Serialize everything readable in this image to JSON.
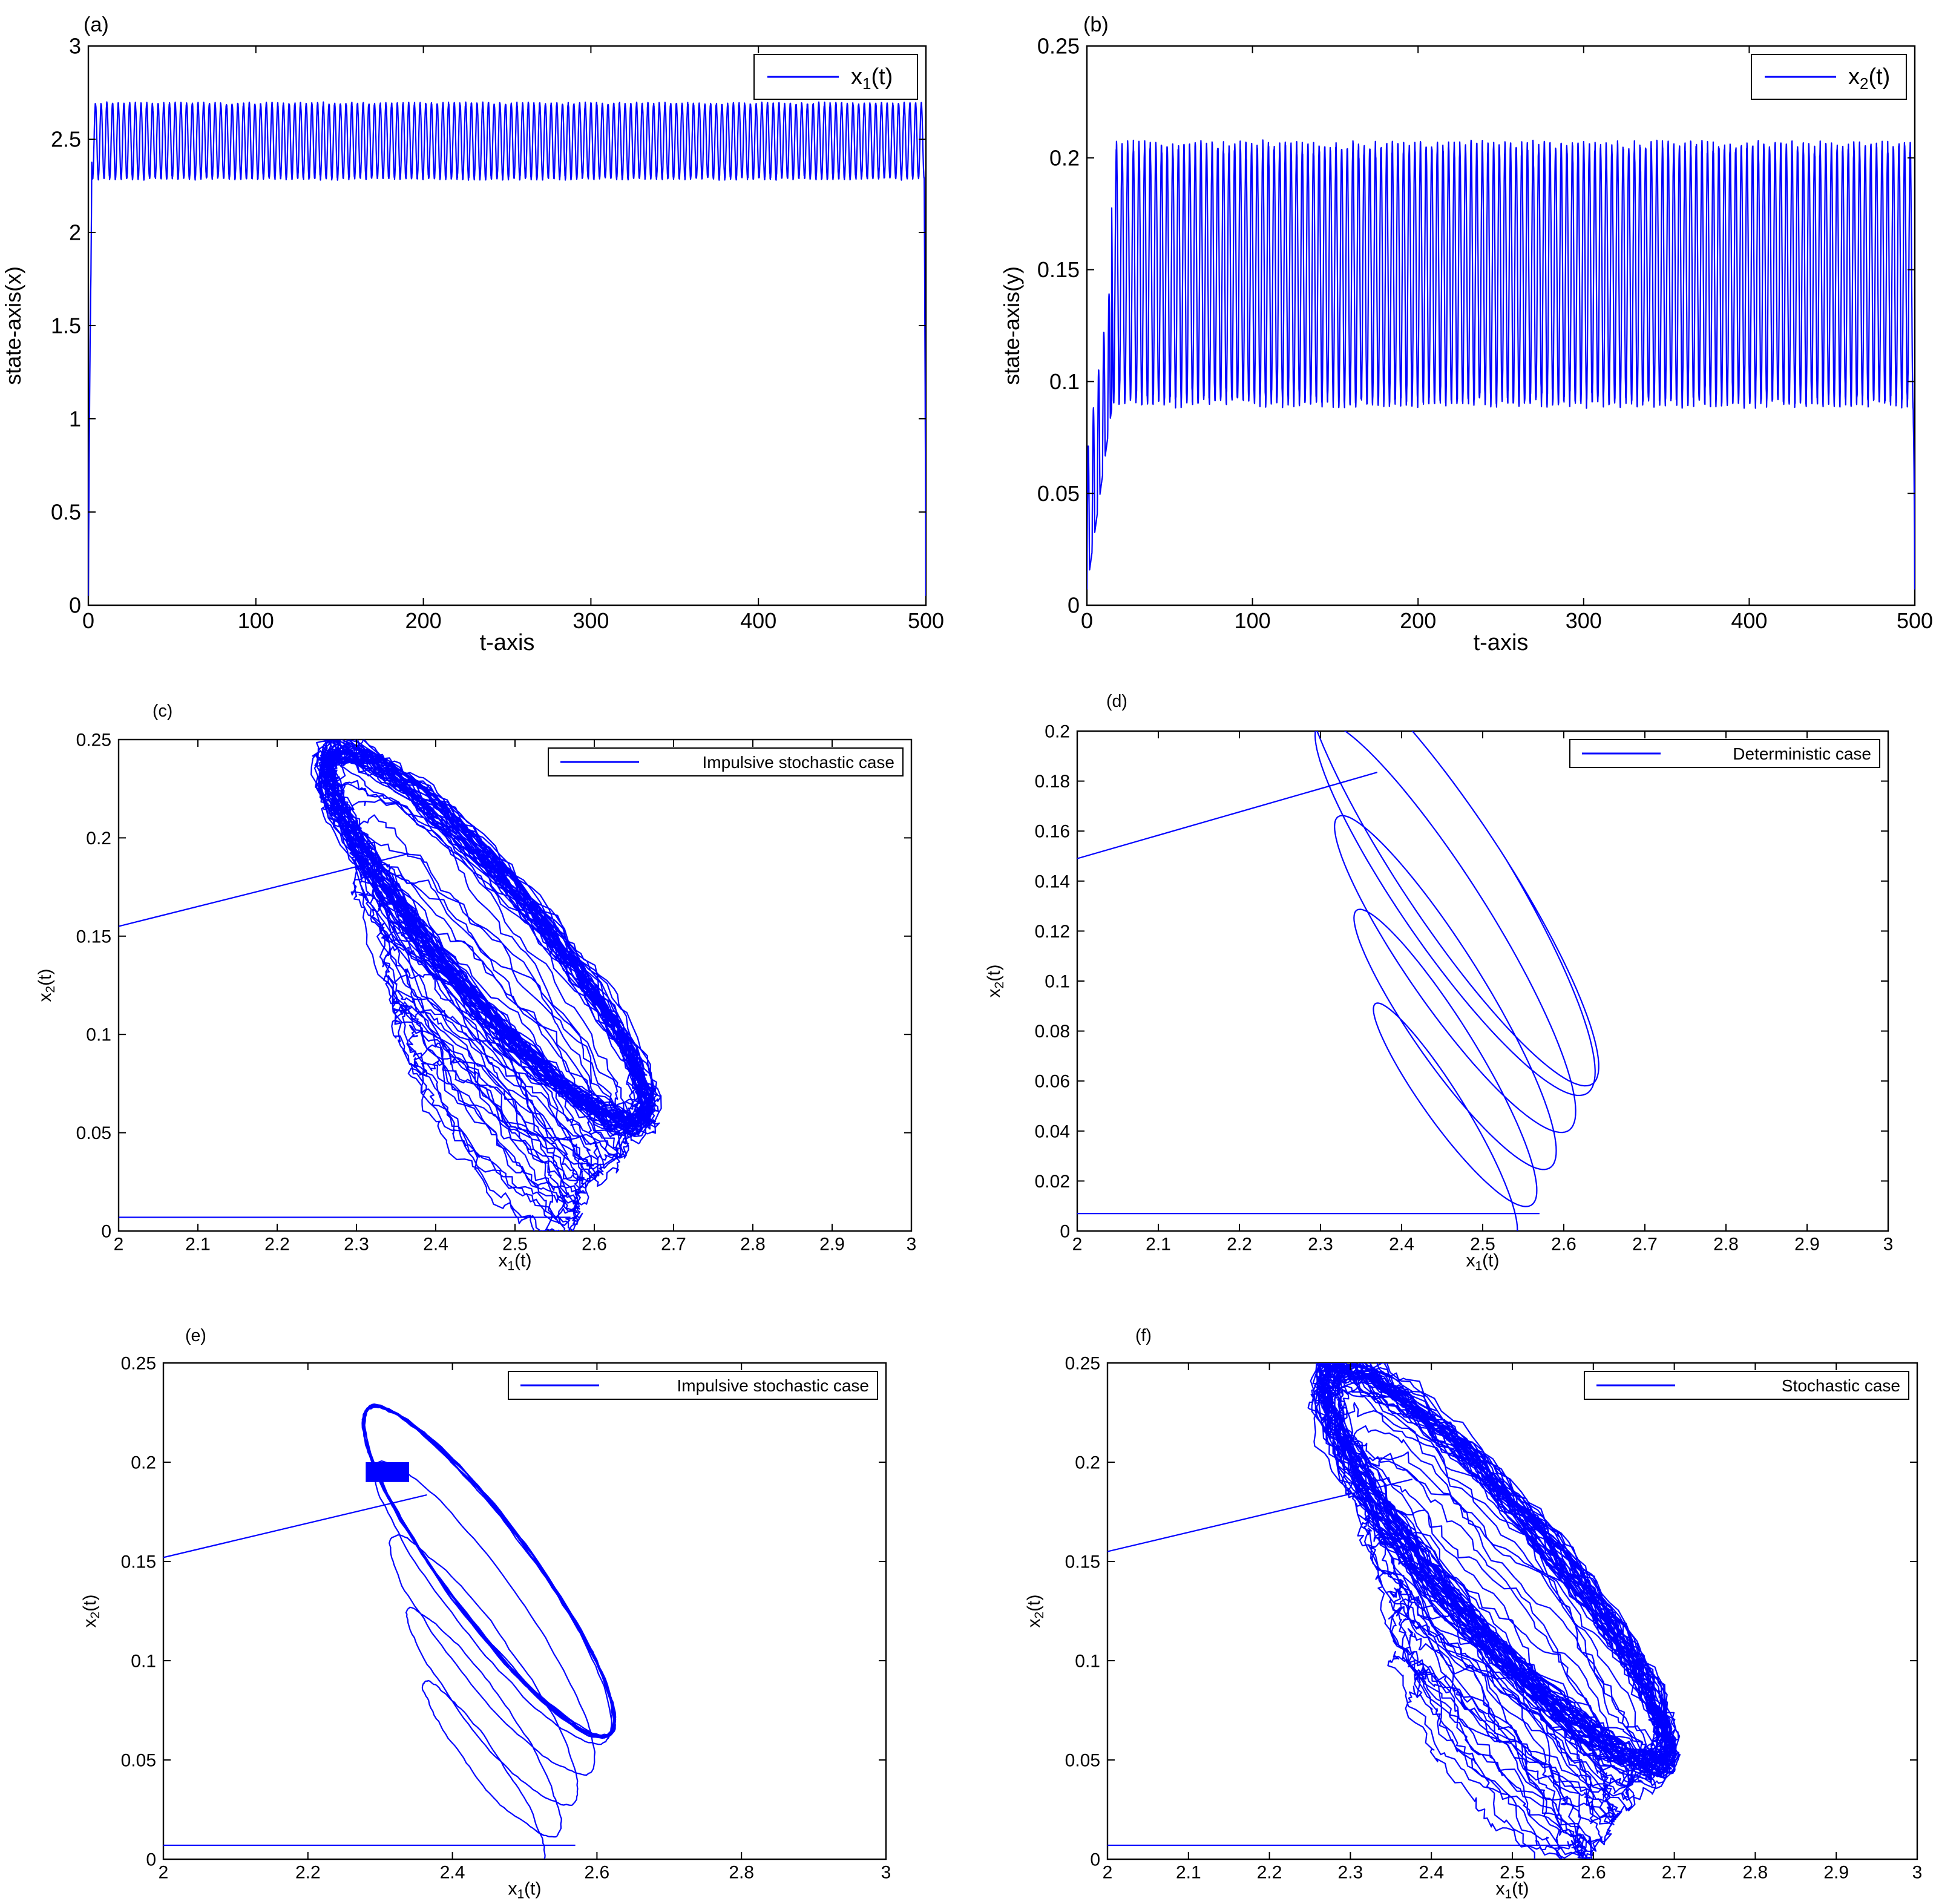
{
  "chart_data": [
    {
      "id": "a",
      "panel_label": "(a)",
      "type": "line",
      "xlabel": "t-axis",
      "ylabel": "state-axis(x)",
      "xlim": [
        0,
        500
      ],
      "ylim": [
        0,
        3
      ],
      "xticks": [
        0,
        100,
        200,
        300,
        400,
        500
      ],
      "yticks": [
        0,
        0.5,
        1,
        1.5,
        2,
        2.5,
        3
      ],
      "xtick_labels": [
        "0",
        "100",
        "200",
        "300",
        "400",
        "500"
      ],
      "ytick_labels": [
        "0",
        "0.5",
        "1",
        "1.5",
        "2",
        "2.5",
        "3"
      ],
      "legend": {
        "placement": "top-right",
        "entries": [
          {
            "label": "x",
            "sub": "1",
            "suffix": "(t)"
          }
        ]
      },
      "series": [
        {
          "name": "x1(t)",
          "color": "#0000ff",
          "initial": 0.05,
          "transient_end": 2,
          "min": 2.28,
          "max": 2.7,
          "period": 3.4
        }
      ],
      "grid": false
    },
    {
      "id": "b",
      "panel_label": "(b)",
      "type": "line",
      "xlabel": "t-axis",
      "ylabel": "state-axis(y)",
      "xlim": [
        0,
        500
      ],
      "ylim": [
        0,
        0.25
      ],
      "xticks": [
        0,
        100,
        200,
        300,
        400,
        500
      ],
      "yticks": [
        0,
        0.05,
        0.1,
        0.15,
        0.2,
        0.25
      ],
      "xtick_labels": [
        "0",
        "100",
        "200",
        "300",
        "400",
        "500"
      ],
      "ytick_labels": [
        "0",
        "0.05",
        "0.1",
        "0.15",
        "0.2",
        "0.25"
      ],
      "legend": {
        "placement": "top-right",
        "entries": [
          {
            "label": "x",
            "sub": "2",
            "suffix": "(t)"
          }
        ]
      },
      "series": [
        {
          "name": "x2(t)",
          "color": "#0000ff",
          "initial": 0.007,
          "transient_end": 15,
          "min": 0.088,
          "max": 0.208,
          "period": 3.4
        }
      ],
      "grid": false
    },
    {
      "id": "c",
      "panel_label": "(c)",
      "type": "line",
      "xlabel": "x1(t)",
      "ylabel": "x2(t)",
      "xlim": [
        2,
        3
      ],
      "ylim": [
        0,
        0.25
      ],
      "xticks": [
        2,
        2.1,
        2.2,
        2.3,
        2.4,
        2.5,
        2.6,
        2.7,
        2.8,
        2.9,
        3
      ],
      "yticks": [
        0,
        0.05,
        0.1,
        0.15,
        0.2,
        0.25
      ],
      "xtick_labels": [
        "2",
        "2.1",
        "2.2",
        "2.3",
        "2.4",
        "2.5",
        "2.6",
        "2.7",
        "2.8",
        "2.9",
        "3"
      ],
      "ytick_labels": [
        "0",
        "0.05",
        "0.1",
        "0.15",
        "0.2",
        "0.25"
      ],
      "legend": {
        "placement": "top-right",
        "entries": [
          {
            "label": "Impulsive stochastic case"
          }
        ]
      },
      "series": [
        {
          "name": "Impulsive stochastic case",
          "color": "#0000ff",
          "start": [
            2.57,
            0.007
          ],
          "jump": [
            2.0,
            0.155
          ],
          "cycle_center": [
            2.465,
            0.15
          ],
          "cycle_semi_x": 0.22,
          "cycle_semi_y": 0.06,
          "noise": 0.012
        }
      ],
      "grid": false
    },
    {
      "id": "d",
      "panel_label": "(d)",
      "type": "line",
      "xlabel": "x1(t)",
      "ylabel": "x2(t)",
      "xlim": [
        2,
        3
      ],
      "ylim": [
        0,
        0.2
      ],
      "xticks": [
        2,
        2.1,
        2.2,
        2.3,
        2.4,
        2.5,
        2.6,
        2.7,
        2.8,
        2.9,
        3
      ],
      "yticks": [
        0,
        0.02,
        0.04,
        0.06,
        0.08,
        0.1,
        0.12,
        0.14,
        0.16,
        0.18,
        0.2
      ],
      "xtick_labels": [
        "2",
        "2.1",
        "2.2",
        "2.3",
        "2.4",
        "2.5",
        "2.6",
        "2.7",
        "2.8",
        "2.9",
        "3"
      ],
      "ytick_labels": [
        "0",
        "0.02",
        "0.04",
        "0.06",
        "0.08",
        "0.1",
        "0.12",
        "0.14",
        "0.16",
        "0.18",
        "0.2"
      ],
      "legend": {
        "placement": "top-right",
        "entries": [
          {
            "label": "Deterministic  case"
          }
        ]
      },
      "series": [
        {
          "name": "Deterministic case",
          "color": "#0000ff",
          "start": [
            2.57,
            0.007
          ],
          "jump": [
            2.0,
            0.149
          ],
          "cycle_center": [
            2.46,
            0.145
          ],
          "cycle_semi_x": 0.2,
          "cycle_semi_y": 0.055,
          "noise": 0
        }
      ],
      "grid": false
    },
    {
      "id": "e",
      "panel_label": "(e)",
      "type": "line",
      "xlabel": "x1(t)",
      "ylabel": "x2(t)",
      "xlim": [
        2,
        3
      ],
      "ylim": [
        0,
        0.25
      ],
      "xticks": [
        2,
        2.2,
        2.4,
        2.6,
        2.8,
        3
      ],
      "yticks": [
        0,
        0.05,
        0.1,
        0.15,
        0.2,
        0.25
      ],
      "xtick_labels": [
        "2",
        "2.2",
        "2.4",
        "2.6",
        "2.8",
        "3"
      ],
      "ytick_labels": [
        "0",
        "0.05",
        "0.1",
        "0.15",
        "0.2",
        "0.25"
      ],
      "legend": {
        "placement": "top-right",
        "entries": [
          {
            "label": "Impulsive stochastic case"
          }
        ]
      },
      "series": [
        {
          "name": "Impulsive stochastic case",
          "color": "#0000ff",
          "start": [
            2.57,
            0.007
          ],
          "jump": [
            2.0,
            0.152
          ],
          "cycle_center": [
            2.45,
            0.145
          ],
          "cycle_semi_x": 0.19,
          "cycle_semi_y": 0.055,
          "noise": 0.002,
          "block": [
            2.28,
            2.34,
            0.19,
            0.2
          ]
        }
      ],
      "grid": false
    },
    {
      "id": "f",
      "panel_label": "(f)",
      "type": "line",
      "xlabel": "x1(t)",
      "ylabel": "x2(t)",
      "xlim": [
        2,
        3
      ],
      "ylim": [
        0,
        0.25
      ],
      "xticks": [
        2,
        2.1,
        2.2,
        2.3,
        2.4,
        2.5,
        2.6,
        2.7,
        2.8,
        2.9,
        3
      ],
      "yticks": [
        0,
        0.05,
        0.1,
        0.15,
        0.2,
        0.25
      ],
      "xtick_labels": [
        "2",
        "2.1",
        "2.2",
        "2.3",
        "2.4",
        "2.5",
        "2.6",
        "2.7",
        "2.8",
        "2.9",
        "3"
      ],
      "ytick_labels": [
        "0",
        "0.05",
        "0.1",
        "0.15",
        "0.2",
        "0.25"
      ],
      "legend": {
        "placement": "top-right",
        "entries": [
          {
            "label": "Stochastic case"
          }
        ]
      },
      "series": [
        {
          "name": "Stochastic case",
          "color": "#0000ff",
          "start": [
            2.57,
            0.007
          ],
          "jump": [
            2.0,
            0.155
          ],
          "cycle_center": [
            2.48,
            0.148
          ],
          "cycle_semi_x": 0.23,
          "cycle_semi_y": 0.062,
          "noise": 0.014
        }
      ],
      "grid": false
    }
  ]
}
